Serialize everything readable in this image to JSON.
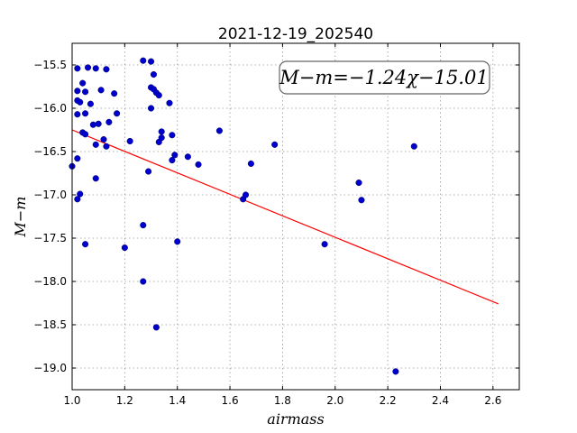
{
  "chart_data": {
    "type": "scatter",
    "title": "2021-12-19_202540",
    "xlabel": "airmass",
    "ylabel": "M−m",
    "xlim": [
      1.0,
      2.7
    ],
    "ylim": [
      -19.25,
      -15.25
    ],
    "y_inverted": true,
    "grid": true,
    "xticks": [
      1.0,
      1.2,
      1.4,
      1.6,
      1.8,
      2.0,
      2.2,
      2.4,
      2.6
    ],
    "xtick_labels": [
      "1.0",
      "1.2",
      "1.4",
      "1.6",
      "1.8",
      "2.0",
      "2.2",
      "2.4",
      "2.6"
    ],
    "yticks": [
      -15.5,
      -16.0,
      -16.5,
      -17.0,
      -17.5,
      -18.0,
      -18.5,
      -19.0
    ],
    "ytick_labels": [
      "−15.5",
      "−16.0",
      "−16.5",
      "−17.0",
      "−17.5",
      "−18.0",
      "−18.5",
      "−19.0"
    ],
    "annotation": "M−m=−1.24χ−15.01",
    "fit": {
      "slope": -1.24,
      "intercept": -15.01,
      "x_range": [
        1.0,
        2.62
      ],
      "color": "#ff0000"
    },
    "point_color": "#0000cc",
    "points": [
      {
        "x": 1.0,
        "y": -16.67
      },
      {
        "x": 1.02,
        "y": -15.54
      },
      {
        "x": 1.02,
        "y": -15.8
      },
      {
        "x": 1.02,
        "y": -15.91
      },
      {
        "x": 1.02,
        "y": -16.07
      },
      {
        "x": 1.02,
        "y": -16.58
      },
      {
        "x": 1.02,
        "y": -17.05
      },
      {
        "x": 1.03,
        "y": -16.99
      },
      {
        "x": 1.03,
        "y": -15.93
      },
      {
        "x": 1.04,
        "y": -15.71
      },
      {
        "x": 1.05,
        "y": -15.81
      },
      {
        "x": 1.05,
        "y": -16.06
      },
      {
        "x": 1.04,
        "y": -16.28
      },
      {
        "x": 1.05,
        "y": -16.3
      },
      {
        "x": 1.05,
        "y": -17.57
      },
      {
        "x": 1.06,
        "y": -15.53
      },
      {
        "x": 1.07,
        "y": -15.95
      },
      {
        "x": 1.09,
        "y": -15.54
      },
      {
        "x": 1.08,
        "y": -16.19
      },
      {
        "x": 1.1,
        "y": -16.18
      },
      {
        "x": 1.09,
        "y": -16.42
      },
      {
        "x": 1.09,
        "y": -16.81
      },
      {
        "x": 1.11,
        "y": -15.79
      },
      {
        "x": 1.12,
        "y": -16.36
      },
      {
        "x": 1.13,
        "y": -15.55
      },
      {
        "x": 1.14,
        "y": -16.16
      },
      {
        "x": 1.13,
        "y": -16.44
      },
      {
        "x": 1.16,
        "y": -15.83
      },
      {
        "x": 1.17,
        "y": -16.06
      },
      {
        "x": 1.2,
        "y": -17.61
      },
      {
        "x": 1.22,
        "y": -16.38
      },
      {
        "x": 1.27,
        "y": -15.45
      },
      {
        "x": 1.27,
        "y": -17.35
      },
      {
        "x": 1.27,
        "y": -18.0
      },
      {
        "x": 1.29,
        "y": -16.73
      },
      {
        "x": 1.3,
        "y": -15.46
      },
      {
        "x": 1.3,
        "y": -15.76
      },
      {
        "x": 1.31,
        "y": -15.78
      },
      {
        "x": 1.3,
        "y": -16.0
      },
      {
        "x": 1.31,
        "y": -15.61
      },
      {
        "x": 1.32,
        "y": -15.82
      },
      {
        "x": 1.33,
        "y": -15.85
      },
      {
        "x": 1.33,
        "y": -16.39
      },
      {
        "x": 1.34,
        "y": -16.27
      },
      {
        "x": 1.34,
        "y": -16.34
      },
      {
        "x": 1.32,
        "y": -18.53
      },
      {
        "x": 1.37,
        "y": -15.94
      },
      {
        "x": 1.38,
        "y": -16.31
      },
      {
        "x": 1.39,
        "y": -16.54
      },
      {
        "x": 1.38,
        "y": -16.6
      },
      {
        "x": 1.4,
        "y": -17.54
      },
      {
        "x": 1.44,
        "y": -16.56
      },
      {
        "x": 1.48,
        "y": -16.65
      },
      {
        "x": 1.56,
        "y": -16.26
      },
      {
        "x": 1.65,
        "y": -17.05
      },
      {
        "x": 1.66,
        "y": -17.0
      },
      {
        "x": 1.68,
        "y": -16.64
      },
      {
        "x": 1.77,
        "y": -16.42
      },
      {
        "x": 1.96,
        "y": -17.57
      },
      {
        "x": 2.09,
        "y": -16.86
      },
      {
        "x": 2.1,
        "y": -17.06
      },
      {
        "x": 2.23,
        "y": -19.04
      },
      {
        "x": 2.3,
        "y": -16.44
      }
    ]
  }
}
